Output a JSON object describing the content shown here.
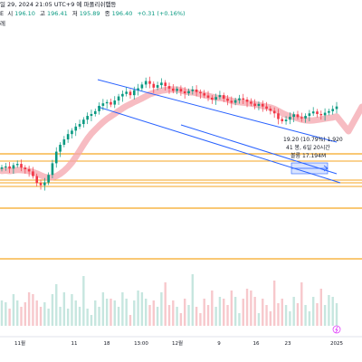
{
  "header": {
    "datetime_label": "일 29, 2024 21:05 UTC+9",
    "exchange_glyph": "예",
    "timezone_label": "파폴리쉬햄등",
    "symbol_fragment": "E",
    "open_label": "시",
    "open_value": "196.10",
    "high_label": "고",
    "high_value": "196.41",
    "low_label": "저",
    "low_value": "195.89",
    "close_label": "종",
    "close_value": "196.40",
    "change_value": "+0.31 (+0.16%)",
    "third_row_fragment": "레"
  },
  "measure_tooltip": {
    "line1": "19.20 (10.79%) 1,920",
    "line2": "41 봉, 6일 20시간",
    "line3": "볼륨 17.194M"
  },
  "xaxis_labels": [
    "11월",
    "11",
    "18",
    "13:00",
    "12월",
    "9",
    "16",
    "23",
    "2025"
  ],
  "icons": {
    "lightning": "lightning-icon"
  },
  "colors": {
    "up": "#089981",
    "down": "#f23645",
    "channel": "#2962ff",
    "level": "#f5a623",
    "ma_band": "#f4a6ad",
    "vol_up": "#c6e6df",
    "vol_down": "#f7c8cc"
  },
  "chart_data": {
    "type": "candlestick",
    "x_labels": [
      "11월",
      "11",
      "18",
      "13:00",
      "12월",
      "9",
      "16",
      "23",
      "2025"
    ],
    "price_levels": [
      196.4
    ],
    "candles_close": [
      173.2,
      173.5,
      172.8,
      173.9,
      174.3,
      173.1,
      172.6,
      171.9,
      170.4,
      168.2,
      167.5,
      168.4,
      170.8,
      174.5,
      178.2,
      180.4,
      182.1,
      183.8,
      184.9,
      186.2,
      187.0,
      188.4,
      189.6,
      190.2,
      191.1,
      192.8,
      193.6,
      194.0,
      193.2,
      194.5,
      195.8,
      196.6,
      197.3,
      196.2,
      197.8,
      198.4,
      199.6,
      200.7,
      199.8,
      198.6,
      199.4,
      200.2,
      199.1,
      198.3,
      197.6,
      198.2,
      197.4,
      196.8,
      197.5,
      198.0,
      197.2,
      196.8,
      196.1,
      195.4,
      194.8,
      195.6,
      196.2,
      195.1,
      194.4,
      193.8,
      194.6,
      195.2,
      194.8,
      194.1,
      193.5,
      192.8,
      193.4,
      192.6,
      191.9,
      191.2,
      190.4,
      188.6,
      187.9,
      188.4,
      189.3,
      190.1,
      189.2,
      188.8,
      189.6,
      190.4,
      191.0,
      190.2,
      189.8,
      190.6,
      191.1,
      191.8,
      192.6
    ]
  }
}
